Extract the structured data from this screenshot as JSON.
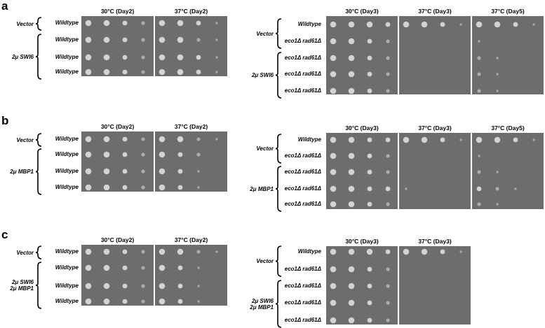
{
  "panels": [
    {
      "letter": "a",
      "left": {
        "conditions": [
          "30°C (Day2)",
          "37°C (Day2)"
        ],
        "groups": [
          {
            "label": "Vector",
            "rows": [
              "Wildtype"
            ]
          },
          {
            "label": "2μ SWI6",
            "rows": [
              "Wildtype",
              "Wildtype",
              "Wildtype"
            ]
          }
        ]
      },
      "right": {
        "conditions": [
          "30°C (Day3)",
          "37°C (Day3)",
          "37°C (Day5)"
        ],
        "groups": [
          {
            "label": "Vector",
            "rows": [
              "Wildtype",
              "eco1Δ rad61Δ"
            ]
          },
          {
            "label": "2μ SWI6",
            "rows": [
              "eco1Δ rad61Δ",
              "eco1Δ rad61Δ",
              "eco1Δ rad61Δ"
            ]
          }
        ]
      }
    },
    {
      "letter": "b",
      "left": {
        "conditions": [
          "30°C (Day2)",
          "37°C (Day2)"
        ],
        "groups": [
          {
            "label": "Vector",
            "rows": [
              "Wildtype"
            ]
          },
          {
            "label": "2μ MBP1",
            "rows": [
              "Wildtype",
              "Wildtype",
              "Wildtype"
            ]
          }
        ]
      },
      "right": {
        "conditions": [
          "30°C (Day3)",
          "37°C (Day3)",
          "37°C (Day5)"
        ],
        "groups": [
          {
            "label": "Vector",
            "rows": [
              "Wildtype",
              "eco1Δ rad61Δ"
            ]
          },
          {
            "label": "2μ MBP1",
            "rows": [
              "eco1Δ rad61Δ",
              "eco1Δ rad61Δ",
              "eco1Δ rad61Δ"
            ]
          }
        ]
      }
    },
    {
      "letter": "c",
      "left": {
        "conditions": [
          "30°C (Day2)",
          "37°C (Day2)"
        ],
        "groups": [
          {
            "label": "Vector",
            "rows": [
              "Wildtype"
            ]
          },
          {
            "label": "2μ SWI6\n2μ MBP1",
            "rows": [
              "Wildtype",
              "Wildtype",
              "Wildtype"
            ]
          }
        ]
      },
      "right": {
        "conditions": [
          "30°C (Day3)",
          "37°C (Day3)"
        ],
        "groups": [
          {
            "label": "Vector",
            "rows": [
              "Wildtype",
              "eco1Δ rad61Δ"
            ]
          },
          {
            "label": "2μ SWI6\n2μ MBP1",
            "rows": [
              "eco1Δ rad61Δ",
              "eco1Δ rad61Δ",
              "eco1Δ rad61Δ"
            ]
          }
        ]
      }
    }
  ],
  "growth": {
    "a": {
      "left": [
        [
          [
            4,
            4,
            3,
            2
          ],
          [
            4,
            4,
            3,
            1
          ]
        ],
        [
          [
            4,
            4,
            3,
            2
          ],
          [
            4,
            4,
            2,
            1
          ]
        ],
        [
          [
            4,
            4,
            3,
            2
          ],
          [
            4,
            4,
            3,
            1
          ]
        ],
        [
          [
            4,
            4,
            3,
            2
          ],
          [
            4,
            4,
            3,
            1
          ]
        ]
      ],
      "right": [
        [
          [
            4,
            4,
            4,
            3
          ],
          [
            4,
            4,
            3,
            1
          ],
          [
            4,
            4,
            3,
            1
          ]
        ],
        [
          [
            4,
            4,
            3,
            2
          ],
          [
            0,
            0,
            0,
            0
          ],
          [
            1,
            0,
            0,
            0
          ]
        ],
        [
          [
            4,
            4,
            3,
            2
          ],
          [
            0,
            0,
            0,
            0
          ],
          [
            2,
            1,
            0,
            0
          ]
        ],
        [
          [
            4,
            4,
            3,
            2
          ],
          [
            0,
            0,
            0,
            0
          ],
          [
            2,
            1,
            0,
            0
          ]
        ],
        [
          [
            4,
            4,
            3,
            2
          ],
          [
            0,
            0,
            0,
            0
          ],
          [
            2,
            1,
            0,
            0
          ]
        ]
      ]
    },
    "b": {
      "left": [
        [
          [
            4,
            4,
            3,
            2
          ],
          [
            4,
            4,
            2,
            1
          ]
        ],
        [
          [
            4,
            4,
            3,
            2
          ],
          [
            4,
            3,
            2,
            0
          ]
        ],
        [
          [
            4,
            4,
            3,
            2
          ],
          [
            4,
            3,
            1,
            0
          ]
        ],
        [
          [
            4,
            4,
            3,
            2
          ],
          [
            4,
            3,
            1,
            0
          ]
        ]
      ],
      "right": [
        [
          [
            4,
            4,
            3,
            3
          ],
          [
            4,
            4,
            3,
            1
          ],
          [
            4,
            4,
            3,
            1
          ]
        ],
        [
          [
            4,
            4,
            3,
            2
          ],
          [
            0,
            0,
            0,
            0
          ],
          [
            1,
            0,
            0,
            0
          ]
        ],
        [
          [
            4,
            4,
            3,
            2
          ],
          [
            0,
            0,
            0,
            0
          ],
          [
            2,
            1,
            0,
            0
          ]
        ],
        [
          [
            4,
            4,
            3,
            3
          ],
          [
            1,
            0,
            0,
            0
          ],
          [
            3,
            2,
            1,
            0
          ]
        ],
        [
          [
            4,
            4,
            3,
            2
          ],
          [
            0,
            0,
            0,
            0
          ],
          [
            2,
            1,
            0,
            0
          ]
        ]
      ]
    },
    "c": {
      "left": [
        [
          [
            4,
            4,
            3,
            2
          ],
          [
            4,
            4,
            2,
            1
          ]
        ],
        [
          [
            4,
            4,
            3,
            2
          ],
          [
            4,
            3,
            1,
            0
          ]
        ],
        [
          [
            4,
            4,
            3,
            2
          ],
          [
            4,
            3,
            1,
            0
          ]
        ],
        [
          [
            4,
            4,
            3,
            2
          ],
          [
            4,
            3,
            1,
            0
          ]
        ]
      ],
      "right": [
        [
          [
            4,
            4,
            4,
            3
          ],
          [
            4,
            4,
            3,
            1
          ]
        ],
        [
          [
            4,
            4,
            3,
            2
          ],
          [
            0,
            0,
            0,
            0
          ]
        ],
        [
          [
            4,
            4,
            3,
            2
          ],
          [
            0,
            0,
            0,
            0
          ]
        ],
        [
          [
            4,
            4,
            3,
            2
          ],
          [
            0,
            0,
            0,
            0
          ]
        ],
        [
          [
            4,
            4,
            3,
            2
          ],
          [
            0,
            0,
            0,
            0
          ]
        ]
      ]
    }
  }
}
